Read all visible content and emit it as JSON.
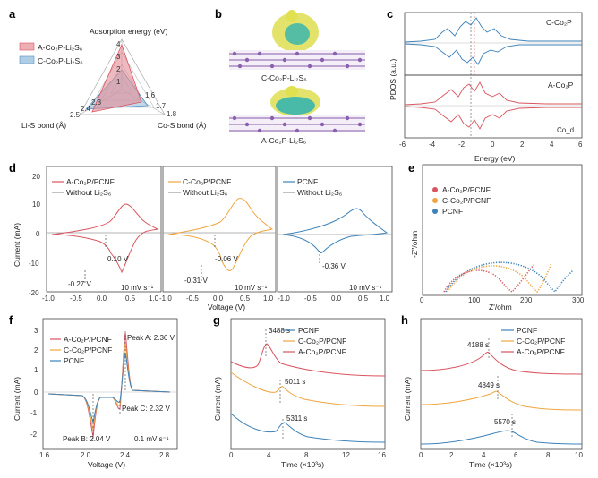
{
  "panel_labels": [
    "a",
    "b",
    "c",
    "d",
    "e",
    "f",
    "g",
    "h"
  ],
  "colors": {
    "red": "#d9545f",
    "orange": "#f0a541",
    "blue": "#3d82b9",
    "gray": "#9a9a9a"
  },
  "panel_a": {
    "axes": [
      "Adsorption energy (eV)",
      "Li-S bond (Å)",
      "Co-S bond (Å)"
    ],
    "legend": [
      "A-Co₂P-Li₂S₆",
      "C-Co₂P-Li₂S₆"
    ],
    "ticks_top": [
      "4",
      "3",
      "2",
      "1"
    ],
    "ticks_left": [
      "2.5",
      "2.4",
      "2.3"
    ],
    "ticks_right": [
      "1.6",
      "1.7",
      "1.8"
    ]
  },
  "panel_b": {
    "labels": [
      "C-Co₂P-Li₂S₆",
      "A-Co₂P-Li₂S₆"
    ]
  },
  "panel_c": {
    "top_label": "C-Co₂P",
    "bottom_label": "A-Co₂P",
    "bottom_sublabel": "Co_d",
    "ylabel": "PDOS (a.u.)",
    "xlabel": "Energy (eV)",
    "xticks": [
      "-6",
      "-4",
      "-2",
      "0",
      "2",
      "4",
      "6"
    ]
  },
  "panel_d": {
    "ylabel": "Current (mA)",
    "xlabel": "Voltage (V)",
    "yticks": [
      "20",
      "10",
      "0",
      "-10",
      "-20"
    ],
    "xticks": [
      "-1.0",
      "-0.5",
      "0.0",
      "0.5",
      "1.0"
    ],
    "subplots": [
      {
        "legend": [
          "A-Co₂P/PCNF",
          "Without Li₂S₆"
        ],
        "ann": [
          "0.10 V",
          "-0.27 V"
        ],
        "rate": "10 mV s⁻¹"
      },
      {
        "legend": [
          "C-Co₂P/PCNF",
          "Without Li₂S₆"
        ],
        "ann": [
          "-0.06 V",
          "-0.31 V"
        ],
        "rate": "10 mV s⁻¹"
      },
      {
        "legend": [
          "PCNF",
          "Without Li₂S₆"
        ],
        "ann": [
          "-0.36 V"
        ],
        "rate": "10 mV s⁻¹"
      }
    ]
  },
  "panel_e": {
    "legend": [
      "A-Co₂P/PCNF",
      "C-Co₂P/PCNF",
      "PCNF"
    ],
    "ylabel": "-Z''/ohm",
    "xlabel": "Z'/ohm",
    "xticks": [
      "0",
      "100",
      "200",
      "300"
    ]
  },
  "panel_f": {
    "legend": [
      "A-Co₂P/PCNF",
      "C-Co₂P/PCNF",
      "PCNF"
    ],
    "ann": [
      "Peak A: 2.36 V",
      "Peak C: 2.32 V",
      "Peak B: 2.04 V",
      "0.1 mV s⁻¹"
    ],
    "ylabel": "Current (mA)",
    "xlabel": "Voltage (V)",
    "yticks": [
      "3",
      "2",
      "1",
      "0",
      "-1",
      "-2"
    ],
    "xticks": [
      "1.6",
      "2.0",
      "2.4",
      "2.8"
    ]
  },
  "panel_g": {
    "legend": [
      "PCNF",
      "C-Co₂P/PCNF",
      "A-Co₂P/PCNF"
    ],
    "ann": [
      "3488 s",
      "5011 s",
      "5311 s"
    ],
    "ylabel": "Current (mA)",
    "xlabel": "Time (×10³s)",
    "xticks": [
      "0",
      "4",
      "8",
      "12",
      "16"
    ]
  },
  "panel_h": {
    "legend": [
      "PCNF",
      "C-Co₂P/PCNF",
      "A-Co₂P/PCNF"
    ],
    "ann": [
      "4188 s",
      "4849 s",
      "5570 s"
    ],
    "ylabel": "Current (mA)",
    "xlabel": "Time (×10³s)",
    "xticks": [
      "0",
      "2",
      "4",
      "6",
      "8",
      "10"
    ]
  }
}
